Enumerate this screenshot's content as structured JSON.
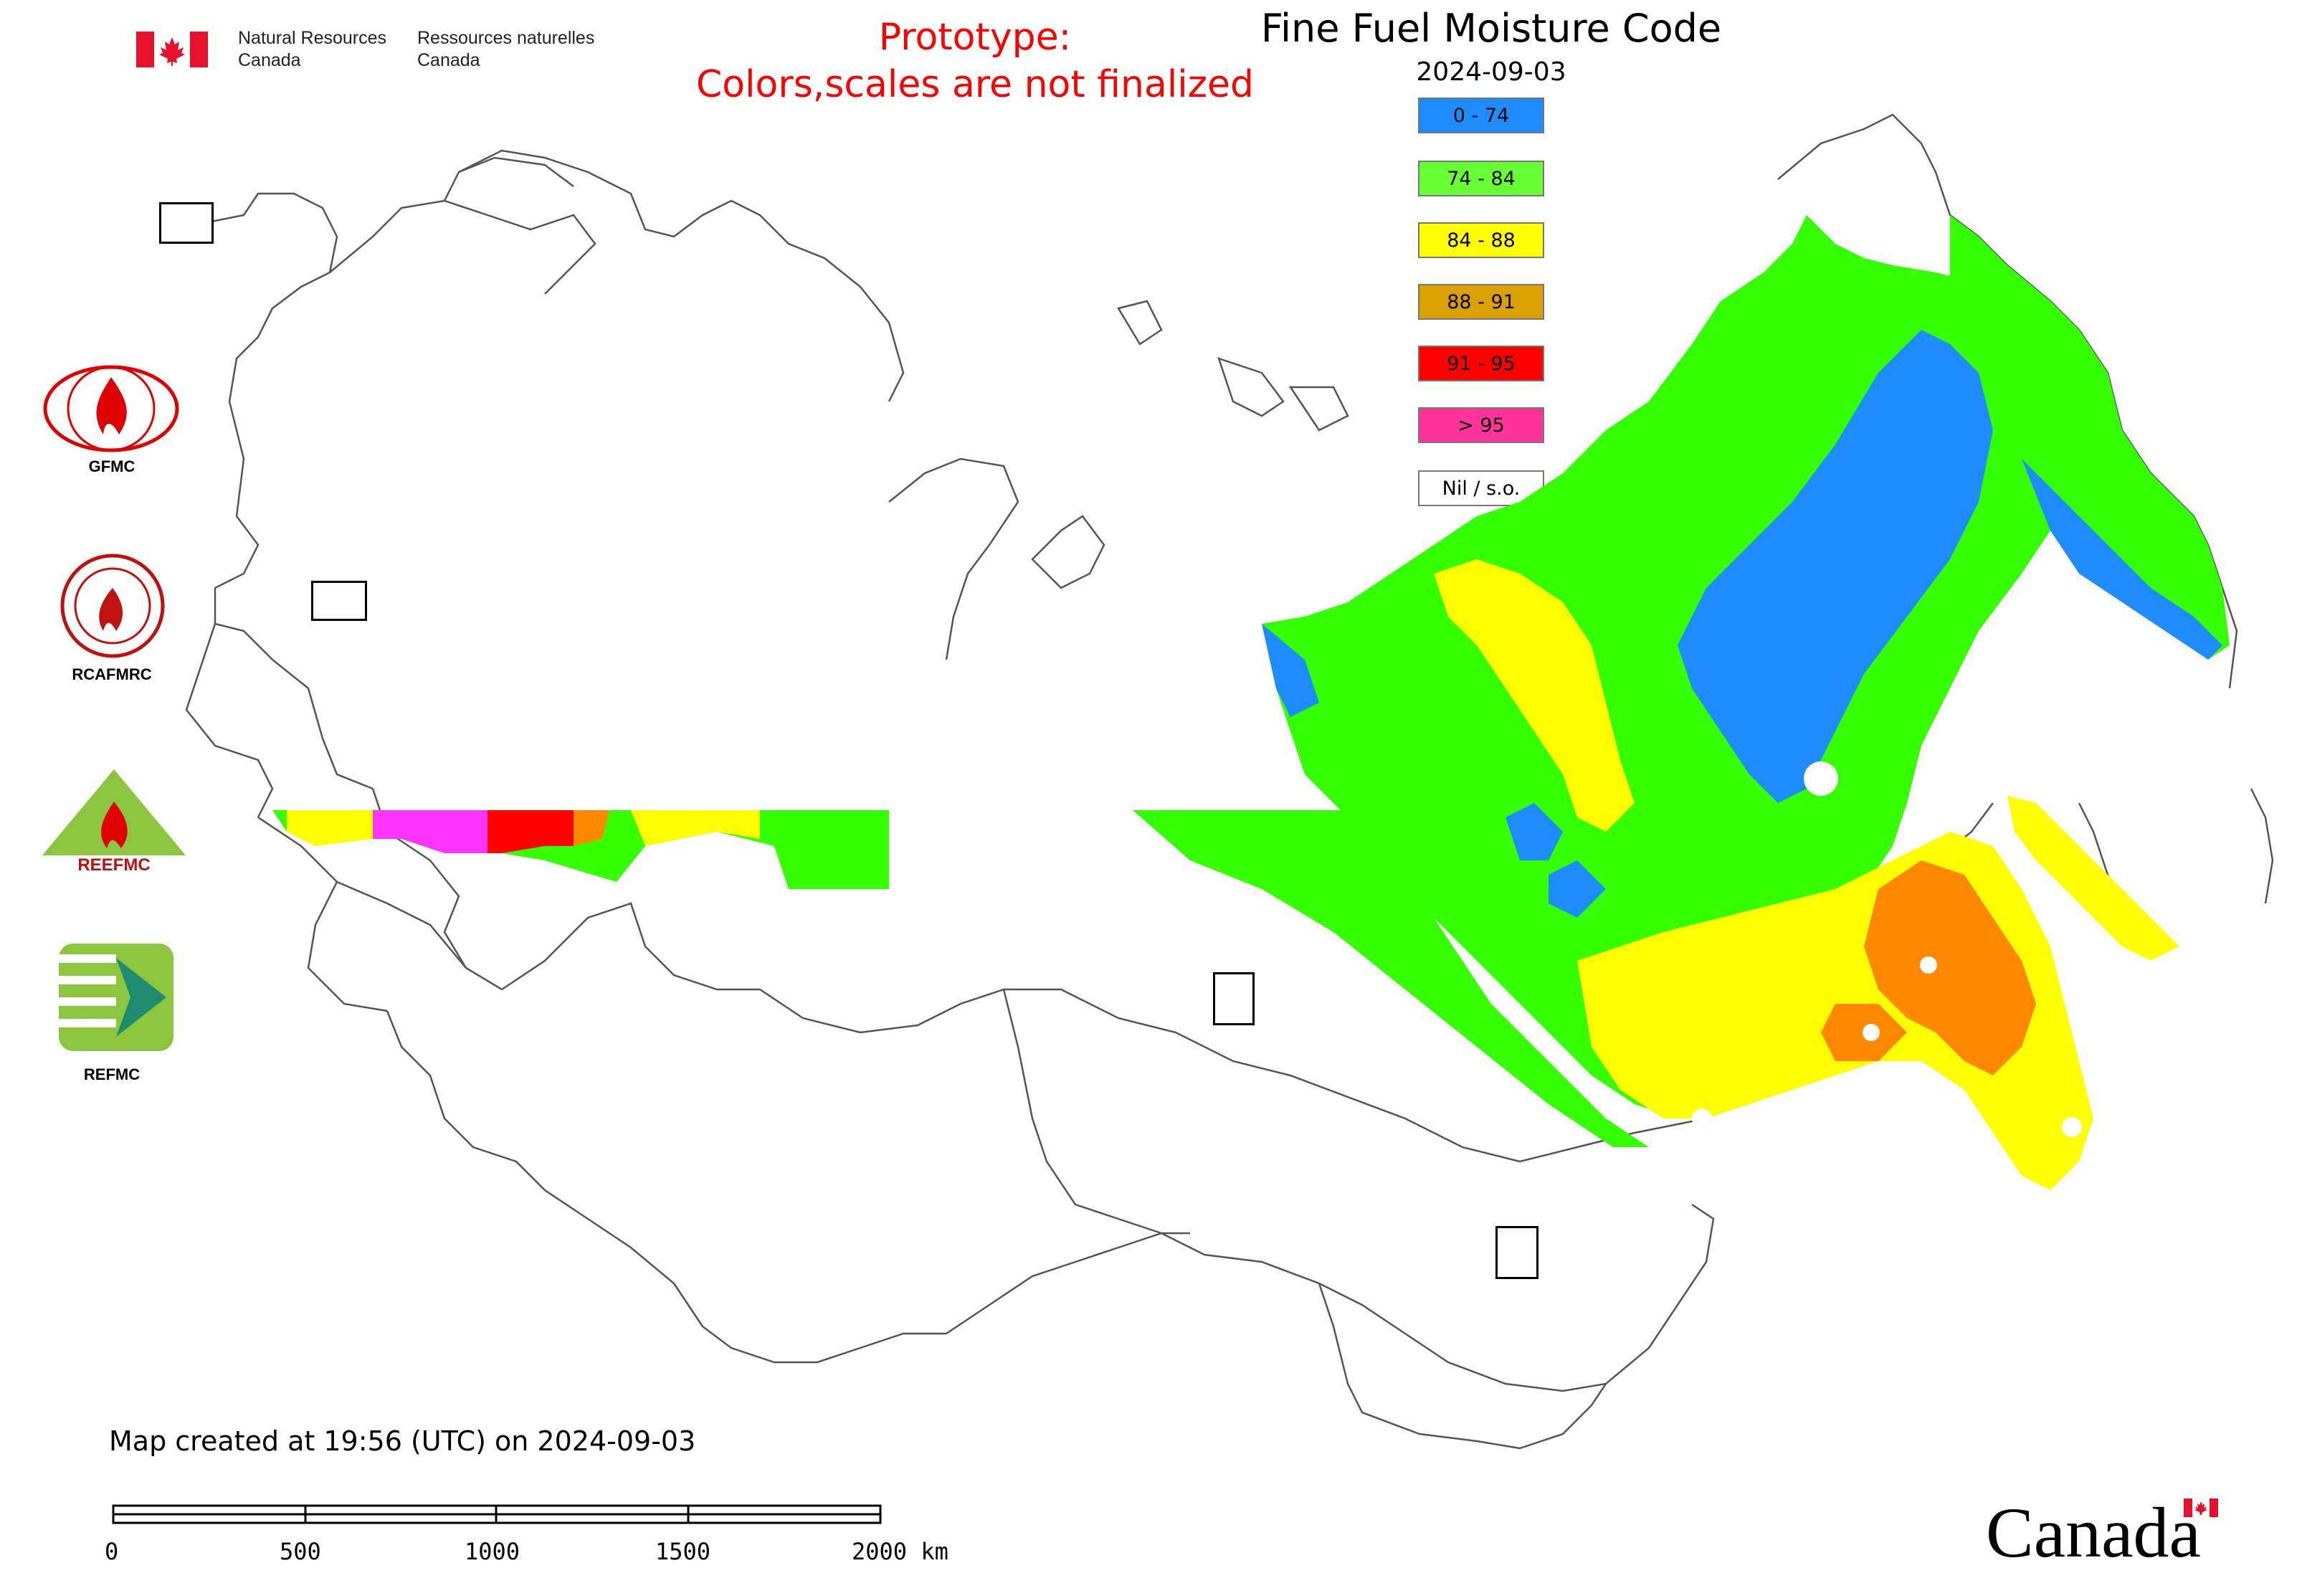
{
  "header": {
    "nrcan_en_line1": "Natural Resources",
    "nrcan_en_line2": "Canada",
    "nrcan_fr_line1": "Ressources naturelles",
    "nrcan_fr_line2": "Canada",
    "prototype_line1": "Prototype:",
    "prototype_line2": "Colors,scales are not finalized",
    "title": "Fine Fuel Moisture Code",
    "date": "2024-09-03"
  },
  "legend": {
    "items": [
      {
        "label": "0 - 74",
        "color": "#1e8cff"
      },
      {
        "label": "74 - 84",
        "color": "#66ff33"
      },
      {
        "label": "84 - 88",
        "color": "#ffff00"
      },
      {
        "label": "88 - 91",
        "color": "#d9a000"
      },
      {
        "label": "91 - 95",
        "color": "#ff0000"
      },
      {
        "label": "> 95",
        "color": "#ff3399"
      },
      {
        "label": "Nil / s.o.",
        "color": "#ffffff"
      }
    ]
  },
  "logos": {
    "gfmc": "GFMC",
    "rcafmrc": "RCAFMRC",
    "reefmc": "REEFMC",
    "refmc": "REFMC"
  },
  "footer": {
    "created": "Map created at 19:56 (UTC) on 2024-09-03",
    "scale_labels": [
      "0",
      "500",
      "1000",
      "1500",
      "2000 km"
    ],
    "canada_wordmark": "Canada"
  },
  "colors": {
    "blue": "#1e8cff",
    "green": "#33ff00",
    "yellow": "#ffff00",
    "orange": "#ff8800",
    "red": "#ff0000",
    "magenta": "#ff33ff",
    "border": "#555555"
  }
}
